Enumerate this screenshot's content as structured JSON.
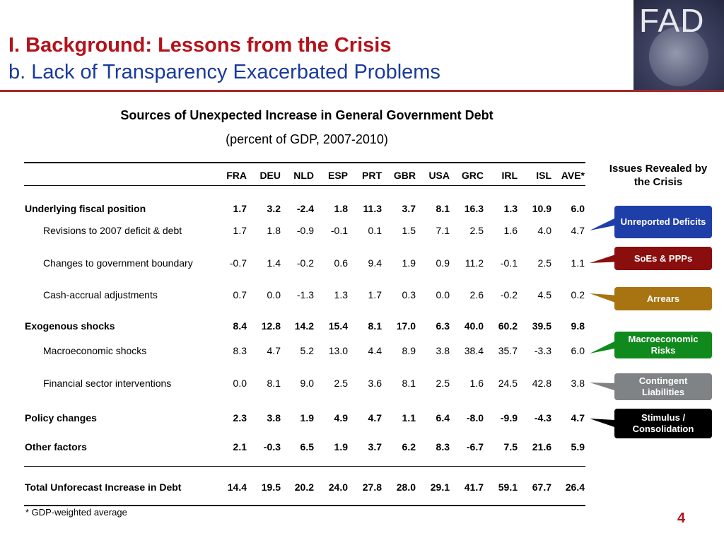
{
  "header": {
    "title_line1": "I. Background: Lessons from the Crisis",
    "title_line2": "b. Lack of Transparency Exacerbated Problems",
    "logo_text": "FAD"
  },
  "table": {
    "title": "Sources of Unexpected Increase in General Government Debt",
    "subtitle": "(percent of GDP, 2007-2010)",
    "columns": [
      "FRA",
      "DEU",
      "NLD",
      "ESP",
      "PRT",
      "GBR",
      "USA",
      "GRC",
      "IRL",
      "ISL",
      "AVE*"
    ],
    "rows": [
      {
        "label": "Underlying fiscal position",
        "bold": true,
        "indent": false,
        "values": [
          "1.7",
          "3.2",
          "-2.4",
          "1.8",
          "11.3",
          "3.7",
          "8.1",
          "16.3",
          "1.3",
          "10.9",
          "6.0"
        ]
      },
      {
        "label": "Revisions to 2007 deficit & debt",
        "bold": false,
        "indent": true,
        "values": [
          "1.7",
          "1.8",
          "-0.9",
          "-0.1",
          "0.1",
          "1.5",
          "7.1",
          "2.5",
          "1.6",
          "4.0",
          "4.7"
        ]
      },
      {
        "label": "Changes to government boundary",
        "bold": false,
        "indent": true,
        "values": [
          "-0.7",
          "1.4",
          "-0.2",
          "0.6",
          "9.4",
          "1.9",
          "0.9",
          "11.2",
          "-0.1",
          "2.5",
          "1.1"
        ]
      },
      {
        "label": "Cash-accrual adjustments",
        "bold": false,
        "indent": true,
        "values": [
          "0.7",
          "0.0",
          "-1.3",
          "1.3",
          "1.7",
          "0.3",
          "0.0",
          "2.6",
          "-0.2",
          "4.5",
          "0.2"
        ]
      },
      {
        "label": "Exogenous shocks",
        "bold": true,
        "indent": false,
        "values": [
          "8.4",
          "12.8",
          "14.2",
          "15.4",
          "8.1",
          "17.0",
          "6.3",
          "40.0",
          "60.2",
          "39.5",
          "9.8"
        ]
      },
      {
        "label": "Macroeconomic shocks",
        "bold": false,
        "indent": true,
        "values": [
          "8.3",
          "4.7",
          "5.2",
          "13.0",
          "4.4",
          "8.9",
          "3.8",
          "38.4",
          "35.7",
          "-3.3",
          "6.0"
        ]
      },
      {
        "label": "Financial sector interventions",
        "bold": false,
        "indent": true,
        "values": [
          "0.0",
          "8.1",
          "9.0",
          "2.5",
          "3.6",
          "8.1",
          "2.5",
          "1.6",
          "24.5",
          "42.8",
          "3.8"
        ]
      },
      {
        "label": "Policy changes",
        "bold": true,
        "indent": false,
        "values": [
          "2.3",
          "3.8",
          "1.9",
          "4.9",
          "4.7",
          "1.1",
          "6.4",
          "-8.0",
          "-9.9",
          "-4.3",
          "4.7"
        ]
      },
      {
        "label": "Other factors",
        "bold": true,
        "indent": false,
        "values": [
          "2.1",
          "-0.3",
          "6.5",
          "1.9",
          "3.7",
          "6.2",
          "8.3",
          "-6.7",
          "7.5",
          "21.6",
          "5.9"
        ]
      }
    ],
    "total": {
      "label": "Total Unforecast Increase in Debt",
      "values": [
        "14.4",
        "19.5",
        "20.2",
        "24.0",
        "27.8",
        "28.0",
        "29.1",
        "41.7",
        "59.1",
        "67.7",
        "26.4"
      ]
    },
    "footnote": "* GDP-weighted average"
  },
  "issues": {
    "title": "Issues Revealed by the Crisis",
    "items": [
      {
        "label": "Unreported Deficits",
        "color": "#1f3fa8"
      },
      {
        "label": "SoEs & PPPs",
        "color": "#8b0e0e"
      },
      {
        "label": "Arrears",
        "color": "#a87412"
      },
      {
        "label": "Macroeconomic Risks",
        "color": "#118a1d"
      },
      {
        "label": "Contingent Liabilities",
        "color": "#7f8386"
      },
      {
        "label": "Stimulus / Consolidation",
        "color": "#000000"
      }
    ]
  },
  "page_number": "4"
}
